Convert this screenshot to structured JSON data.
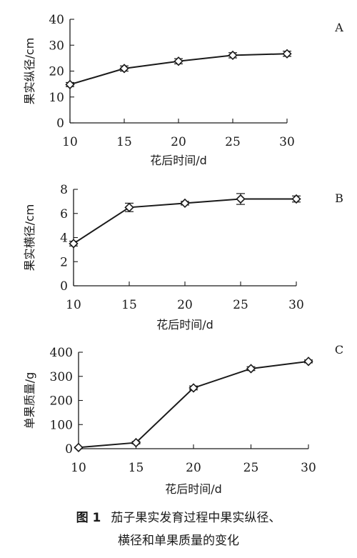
{
  "chart_data": [
    {
      "type": "line",
      "panel_label": "A",
      "x": [
        10,
        15,
        20,
        25,
        30
      ],
      "series": [
        {
          "values": [
            14.8,
            21.0,
            23.8,
            26.1,
            26.7
          ],
          "errors": [
            0.8,
            1.0,
            1.0,
            1.0,
            1.0
          ]
        }
      ],
      "xlabel": "花后时间/d",
      "ylabel": "果实纵径/cm",
      "xlim": [
        10,
        30
      ],
      "ylim": [
        0,
        40
      ],
      "xticks": [
        "10",
        "15",
        "20",
        "25",
        "30"
      ],
      "yticks": [
        "0",
        "10",
        "20",
        "30",
        "40"
      ],
      "marker": "diamond",
      "grid": false
    },
    {
      "type": "line",
      "panel_label": "B",
      "x": [
        10,
        15,
        20,
        25,
        30
      ],
      "series": [
        {
          "values": [
            3.5,
            6.5,
            6.85,
            7.2,
            7.2
          ],
          "errors": [
            0.2,
            0.35,
            0.15,
            0.45,
            0.25
          ]
        }
      ],
      "xlabel": "花后时间/d",
      "ylabel": "果实横径/cm",
      "xlim": [
        10,
        30
      ],
      "ylim": [
        0,
        8
      ],
      "xticks": [
        "10",
        "15",
        "20",
        "25",
        "30"
      ],
      "yticks": [
        "0",
        "2",
        "4",
        "6",
        "8"
      ],
      "marker": "diamond",
      "grid": false
    },
    {
      "type": "line",
      "panel_label": "C",
      "x": [
        10,
        15,
        20,
        25,
        30
      ],
      "series": [
        {
          "values": [
            5,
            25,
            252,
            332,
            362
          ],
          "errors": [
            2,
            5,
            8,
            8,
            6
          ]
        }
      ],
      "xlabel": "花后时间/d",
      "ylabel": "单果质量/g",
      "xlim": [
        10,
        30
      ],
      "ylim": [
        0,
        400
      ],
      "xticks": [
        "10",
        "15",
        "20",
        "25",
        "30"
      ],
      "yticks": [
        "0",
        "100",
        "200",
        "300",
        "400"
      ],
      "marker": "diamond",
      "grid": false
    }
  ],
  "caption": {
    "number": "图 1",
    "line1": "茄子果实发育过程中果实纵径、",
    "line2": "横径和单果质量的变化"
  }
}
